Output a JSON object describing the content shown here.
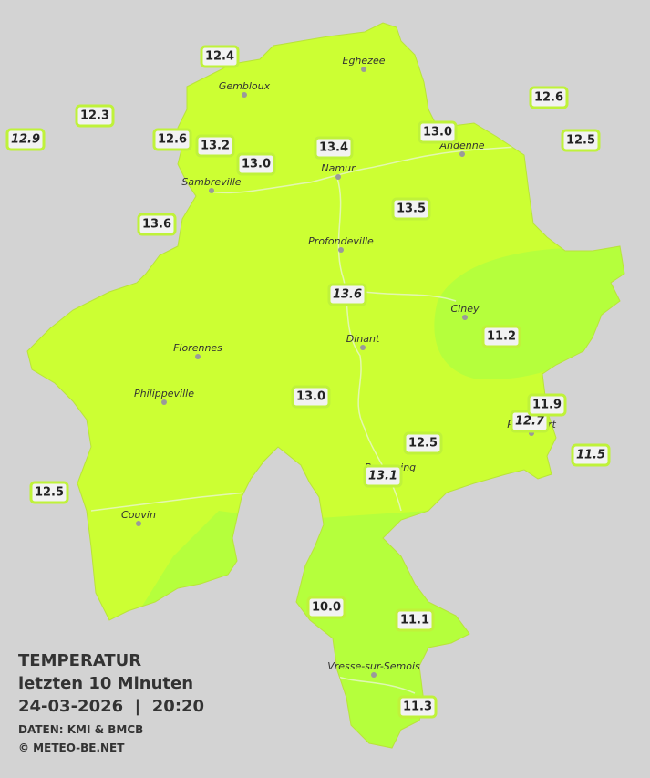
{
  "title": {
    "heading": "TEMPERATUR",
    "period": "letzten 10 Minuten",
    "datetime": "24-03-2026  |  20:20",
    "source": "DATEN: KMI & BMCB",
    "copyright": "© METEO-BE.NET"
  },
  "cities": [
    "Gembloux",
    "Eghezee",
    "Andenne",
    "Namur",
    "Sambreville",
    "Profondeville",
    "Ciney",
    "Dinant",
    "Florennes",
    "Philippeville",
    "Rochefort",
    "Beauraing",
    "Couvin",
    "Vresse-sur-Semois"
  ],
  "stations": [
    "12.4",
    "12.3",
    "12.9",
    "12.6",
    "13.2",
    "13.0",
    "13.4",
    "13.0",
    "12.6",
    "12.5",
    "13.6",
    "13.5",
    "13.6",
    "11.2",
    "13.0",
    "12.7",
    "11.9",
    "12.5",
    "11.5",
    "13.1",
    "12.5",
    "10.0",
    "11.1",
    "11.3"
  ]
}
